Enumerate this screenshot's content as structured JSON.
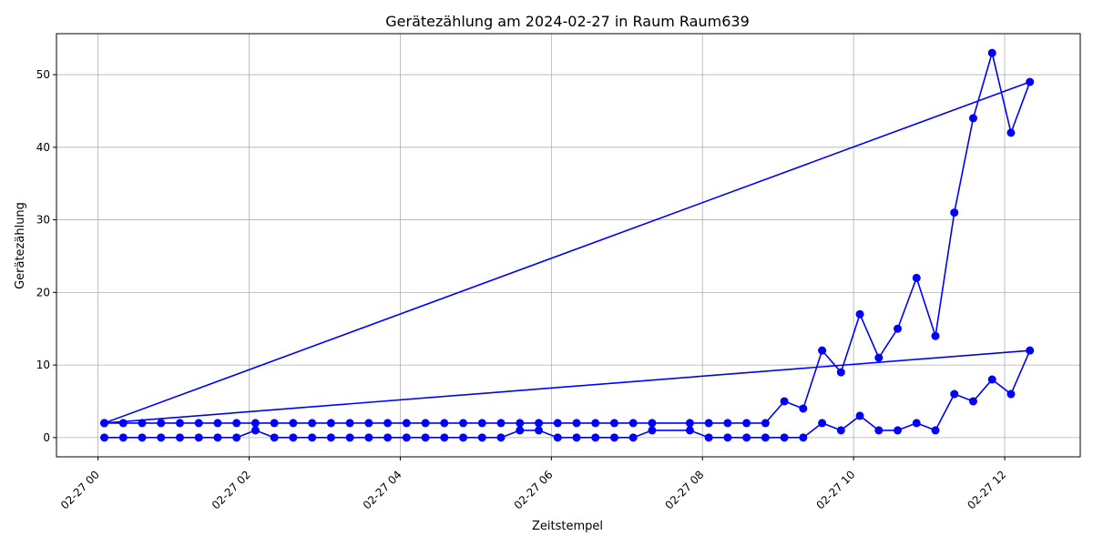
{
  "chart_data": {
    "type": "line",
    "title": "Gerätezählung am 2024-02-27 in Raum Raum639",
    "xlabel": "Zeitstempel",
    "ylabel": "Gerätezählung",
    "x_tick_labels": [
      "02-27 00",
      "02-27 02",
      "02-27 04",
      "02-27 06",
      "02-27 08",
      "02-27 10",
      "02-27 12"
    ],
    "x_tick_hours": [
      0,
      2,
      4,
      6,
      8,
      10,
      12
    ],
    "y_ticks": [
      0,
      10,
      20,
      30,
      40,
      50
    ],
    "xlim_hours": [
      -0.55,
      13.0
    ],
    "ylim": [
      -2.65,
      55.65
    ],
    "grid": true,
    "line_color": "#0000ff",
    "series": [
      {
        "points": [
          [
            "2024-02-27 00:05",
            2
          ],
          [
            "2024-02-27 00:20",
            2
          ],
          [
            "2024-02-27 00:35",
            2
          ],
          [
            "2024-02-27 00:50",
            2
          ],
          [
            "2024-02-27 01:05",
            2
          ],
          [
            "2024-02-27 01:20",
            2
          ],
          [
            "2024-02-27 01:35",
            2
          ],
          [
            "2024-02-27 01:50",
            2
          ],
          [
            "2024-02-27 02:05",
            2
          ],
          [
            "2024-02-27 02:20",
            2
          ],
          [
            "2024-02-27 02:35",
            2
          ],
          [
            "2024-02-27 02:50",
            2
          ],
          [
            "2024-02-27 03:05",
            2
          ],
          [
            "2024-02-27 03:20",
            2
          ],
          [
            "2024-02-27 03:35",
            2
          ],
          [
            "2024-02-27 03:50",
            2
          ],
          [
            "2024-02-27 04:05",
            2
          ],
          [
            "2024-02-27 04:20",
            2
          ],
          [
            "2024-02-27 04:35",
            2
          ],
          [
            "2024-02-27 04:50",
            2
          ],
          [
            "2024-02-27 05:05",
            2
          ],
          [
            "2024-02-27 05:20",
            2
          ],
          [
            "2024-02-27 05:35",
            2
          ],
          [
            "2024-02-27 05:50",
            2
          ],
          [
            "2024-02-27 06:05",
            2
          ],
          [
            "2024-02-27 06:20",
            2
          ],
          [
            "2024-02-27 06:35",
            2
          ],
          [
            "2024-02-27 06:50",
            2
          ],
          [
            "2024-02-27 07:05",
            2
          ],
          [
            "2024-02-27 07:20",
            2
          ],
          [
            "2024-02-27 07:50",
            2
          ],
          [
            "2024-02-27 08:05",
            2
          ],
          [
            "2024-02-27 08:20",
            2
          ],
          [
            "2024-02-27 08:35",
            2
          ],
          [
            "2024-02-27 08:50",
            2
          ],
          [
            "2024-02-27 09:05",
            5
          ],
          [
            "2024-02-27 09:20",
            4
          ],
          [
            "2024-02-27 09:35",
            12
          ],
          [
            "2024-02-27 09:50",
            9
          ],
          [
            "2024-02-27 10:05",
            17
          ],
          [
            "2024-02-27 10:20",
            11
          ],
          [
            "2024-02-27 10:35",
            15
          ],
          [
            "2024-02-27 10:50",
            22
          ],
          [
            "2024-02-27 11:05",
            14
          ],
          [
            "2024-02-27 11:20",
            31
          ],
          [
            "2024-02-27 11:35",
            44
          ],
          [
            "2024-02-27 11:50",
            53
          ],
          [
            "2024-02-27 12:05",
            42
          ],
          [
            "2024-02-27 12:20",
            49
          ],
          [
            "2024-02-27 00:05",
            2
          ],
          [
            "2024-02-27 12:20",
            12
          ],
          [
            "2024-02-27 12:05",
            6
          ],
          [
            "2024-02-27 11:50",
            8
          ],
          [
            "2024-02-27 11:35",
            5
          ],
          [
            "2024-02-27 11:20",
            6
          ],
          [
            "2024-02-27 11:05",
            1
          ],
          [
            "2024-02-27 10:50",
            2
          ],
          [
            "2024-02-27 10:35",
            1
          ],
          [
            "2024-02-27 10:20",
            1
          ],
          [
            "2024-02-27 10:05",
            3
          ],
          [
            "2024-02-27 09:50",
            1
          ],
          [
            "2024-02-27 09:35",
            2
          ],
          [
            "2024-02-27 09:20",
            0
          ],
          [
            "2024-02-27 09:05",
            0
          ],
          [
            "2024-02-27 08:50",
            0
          ],
          [
            "2024-02-27 08:35",
            0
          ],
          [
            "2024-02-27 08:20",
            0
          ],
          [
            "2024-02-27 08:05",
            0
          ],
          [
            "2024-02-27 07:50",
            1
          ],
          [
            "2024-02-27 07:20",
            1
          ],
          [
            "2024-02-27 07:05",
            0
          ],
          [
            "2024-02-27 06:50",
            0
          ],
          [
            "2024-02-27 06:35",
            0
          ],
          [
            "2024-02-27 06:20",
            0
          ],
          [
            "2024-02-27 06:05",
            0
          ],
          [
            "2024-02-27 05:50",
            1
          ],
          [
            "2024-02-27 05:35",
            1
          ],
          [
            "2024-02-27 05:20",
            0
          ],
          [
            "2024-02-27 05:05",
            0
          ],
          [
            "2024-02-27 04:50",
            0
          ],
          [
            "2024-02-27 04:35",
            0
          ],
          [
            "2024-02-27 04:20",
            0
          ],
          [
            "2024-02-27 04:05",
            0
          ],
          [
            "2024-02-27 03:50",
            0
          ],
          [
            "2024-02-27 03:35",
            0
          ],
          [
            "2024-02-27 03:20",
            0
          ],
          [
            "2024-02-27 03:05",
            0
          ],
          [
            "2024-02-27 02:50",
            0
          ],
          [
            "2024-02-27 02:35",
            0
          ],
          [
            "2024-02-27 02:20",
            0
          ],
          [
            "2024-02-27 02:05",
            1
          ],
          [
            "2024-02-27 01:50",
            0
          ],
          [
            "2024-02-27 01:35",
            0
          ],
          [
            "2024-02-27 01:20",
            0
          ],
          [
            "2024-02-27 01:05",
            0
          ],
          [
            "2024-02-27 00:50",
            0
          ],
          [
            "2024-02-27 00:35",
            0
          ],
          [
            "2024-02-27 00:20",
            0
          ],
          [
            "2024-02-27 00:05",
            0
          ]
        ]
      }
    ]
  }
}
